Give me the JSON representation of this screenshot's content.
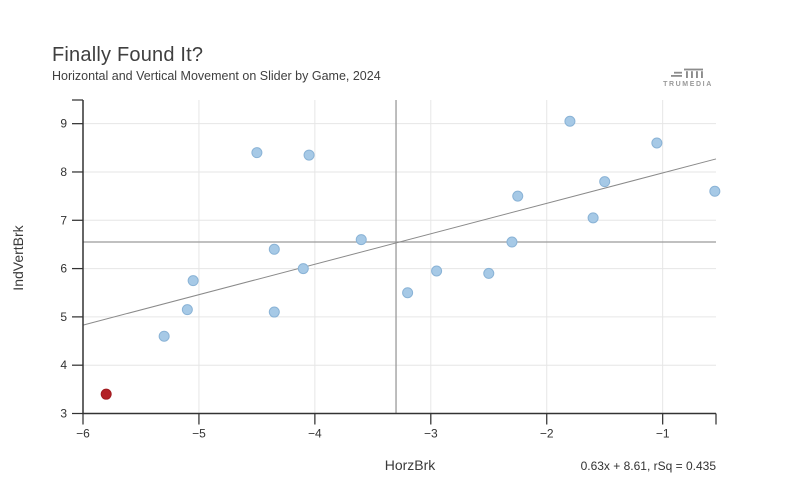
{
  "header": {
    "title": "Finally Found It?",
    "subtitle": "Horizontal and Vertical Movement on Slider by Game, 2024",
    "logo_text": "TRUMEDIA"
  },
  "footer": {
    "equation_label": "0.63x + 8.61, rSq = 0.435"
  },
  "chart_data": {
    "type": "scatter",
    "title": "Finally Found It?",
    "subtitle": "Horizontal and Vertical Movement on Slider by Game, 2024",
    "xlabel": "HorzBrk",
    "ylabel": "IndVertBrk",
    "xlim": [
      -6,
      -0.54
    ],
    "ylim": [
      3,
      9.49
    ],
    "xticks": [
      -6,
      -5,
      -4,
      -3,
      -2,
      -1
    ],
    "yticks": [
      3,
      4,
      5,
      6,
      7,
      8,
      9
    ],
    "grid": true,
    "legend": "none",
    "series": [
      {
        "name": "games",
        "color": "#a6c9e6",
        "stroke": "#8ab3d6",
        "points": [
          [
            -5.3,
            4.6
          ],
          [
            -5.1,
            5.15
          ],
          [
            -5.05,
            5.75
          ],
          [
            -4.5,
            8.4
          ],
          [
            -4.35,
            6.4
          ],
          [
            -4.35,
            5.1
          ],
          [
            -4.1,
            6.0
          ],
          [
            -4.05,
            8.35
          ],
          [
            -3.6,
            6.6
          ],
          [
            -3.2,
            5.5
          ],
          [
            -2.95,
            5.95
          ],
          [
            -2.5,
            5.9
          ],
          [
            -2.3,
            6.55
          ],
          [
            -2.25,
            7.5
          ],
          [
            -1.8,
            9.05
          ],
          [
            -1.6,
            7.05
          ],
          [
            -1.5,
            7.8
          ],
          [
            -1.05,
            8.6
          ],
          [
            -0.55,
            7.6
          ]
        ]
      },
      {
        "name": "highlighted-game",
        "color": "#b32025",
        "stroke": "#a01b20",
        "points": [
          [
            -5.8,
            3.4
          ]
        ]
      }
    ],
    "reference_lines": {
      "vertical_x": -3.3,
      "horizontal_y": 6.55,
      "color": "#9a9a9a"
    },
    "trend_line": {
      "slope": 0.63,
      "intercept": 8.61,
      "r_squared": 0.435,
      "label": "0.63x + 8.61, rSq = 0.435",
      "color": "#8a8a8a"
    },
    "style": {
      "axis_color": "#333333",
      "grid_color": "#e6e6e6",
      "tick_label_color": "#333333",
      "point_radius": 5
    }
  }
}
